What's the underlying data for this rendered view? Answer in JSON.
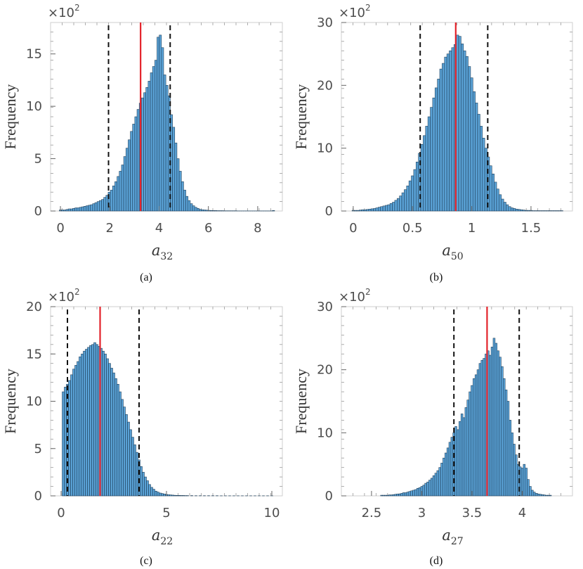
{
  "chart_data": [
    {
      "type": "bar",
      "caption": "(a)",
      "ylabel": "Frequency",
      "xlabel": "a",
      "xlabel_sub": "32",
      "multiplier": "×10",
      "multiplier_exp": "2",
      "xlim": [
        -0.4,
        9.0
      ],
      "ylim": [
        0,
        18
      ],
      "xticks": [
        0,
        2,
        4,
        6,
        8
      ],
      "xtick_labels": [
        "0",
        "2",
        "4",
        "6",
        "8"
      ],
      "yticks": [
        0,
        5,
        10,
        15
      ],
      "ytick_labels": [
        "0",
        "5",
        "10",
        "15"
      ],
      "mean_line": 3.25,
      "interval_lines": [
        1.95,
        4.45
      ],
      "bar_width": 0.09,
      "x": [
        0.0,
        0.09,
        0.18,
        0.27,
        0.36,
        0.45,
        0.54,
        0.63,
        0.72,
        0.81,
        0.9,
        0.99,
        1.08,
        1.17,
        1.26,
        1.35,
        1.44,
        1.53,
        1.62,
        1.71,
        1.8,
        1.89,
        1.98,
        2.07,
        2.16,
        2.25,
        2.34,
        2.43,
        2.52,
        2.61,
        2.7,
        2.79,
        2.88,
        2.97,
        3.06,
        3.15,
        3.24,
        3.33,
        3.42,
        3.51,
        3.6,
        3.69,
        3.78,
        3.87,
        3.96,
        4.05,
        4.14,
        4.23,
        4.32,
        4.41,
        4.5,
        4.59,
        4.68,
        4.77,
        4.86,
        4.95,
        5.04,
        5.13,
        5.22,
        5.31,
        5.4,
        5.49,
        5.58,
        5.67,
        5.76,
        5.85,
        5.94,
        6.03,
        6.12,
        6.21,
        6.3,
        6.39,
        6.48,
        6.57,
        6.66,
        6.75,
        6.84,
        6.93,
        7.02,
        7.11,
        7.2,
        7.29,
        7.38,
        7.47,
        7.56,
        7.65,
        7.74,
        7.83,
        7.92,
        8.01,
        8.1,
        8.19,
        8.28,
        8.37,
        8.46,
        8.55,
        8.64
      ],
      "values": [
        0.1,
        0.1,
        0.1,
        0.15,
        0.2,
        0.2,
        0.25,
        0.3,
        0.3,
        0.35,
        0.4,
        0.45,
        0.5,
        0.55,
        0.6,
        0.7,
        0.8,
        0.9,
        1.0,
        1.1,
        1.3,
        1.5,
        1.8,
        2.0,
        2.4,
        2.8,
        3.3,
        3.8,
        4.4,
        5.2,
        6.0,
        6.8,
        7.6,
        8.3,
        9.0,
        9.7,
        10.3,
        10.8,
        11.3,
        11.8,
        12.4,
        13.2,
        13.8,
        14.4,
        16.6,
        16.8,
        15.6,
        13.0,
        12.0,
        11.0,
        9.2,
        8.0,
        6.5,
        5.0,
        3.8,
        2.8,
        2.0,
        1.4,
        1.0,
        0.7,
        0.5,
        0.35,
        0.25,
        0.15,
        0.12,
        0.1,
        0.08,
        0.06,
        0.05,
        0.04,
        0.04,
        0.03,
        0.03,
        0.03,
        0.02,
        0.02,
        0.02,
        0.02,
        0.02,
        0.02,
        0.01,
        0.01,
        0.01,
        0.01,
        0.01,
        0.01,
        0.01,
        0.01,
        0.01,
        0.01,
        0.01,
        0.01,
        0.01,
        0.01,
        0.01,
        0.01,
        0.05
      ]
    },
    {
      "type": "bar",
      "caption": "(b)",
      "ylabel": "Frequency",
      "xlabel": "a",
      "xlabel_sub": "50",
      "multiplier": "×10",
      "multiplier_exp": "2",
      "xlim": [
        -0.1,
        1.85
      ],
      "ylim": [
        0,
        30
      ],
      "xticks": [
        0,
        0.5,
        1,
        1.5
      ],
      "xtick_labels": [
        "0",
        "0.5",
        "1",
        "1.5"
      ],
      "yticks": [
        0,
        10,
        20,
        30
      ],
      "ytick_labels": [
        "0",
        "10",
        "20",
        "30"
      ],
      "mean_line": 0.865,
      "interval_lines": [
        0.565,
        1.135
      ],
      "bar_width": 0.02,
      "x": [
        0.0,
        0.02,
        0.04,
        0.06,
        0.08,
        0.1,
        0.12,
        0.14,
        0.16,
        0.18,
        0.2,
        0.22,
        0.24,
        0.26,
        0.28,
        0.3,
        0.32,
        0.34,
        0.36,
        0.38,
        0.4,
        0.42,
        0.44,
        0.46,
        0.48,
        0.5,
        0.52,
        0.54,
        0.56,
        0.58,
        0.6,
        0.62,
        0.64,
        0.66,
        0.68,
        0.7,
        0.72,
        0.74,
        0.76,
        0.78,
        0.8,
        0.82,
        0.84,
        0.86,
        0.88,
        0.9,
        0.92,
        0.94,
        0.96,
        0.98,
        1.0,
        1.02,
        1.04,
        1.06,
        1.08,
        1.1,
        1.12,
        1.14,
        1.16,
        1.18,
        1.2,
        1.22,
        1.24,
        1.26,
        1.28,
        1.3,
        1.32,
        1.34,
        1.36,
        1.38,
        1.4,
        1.42,
        1.44,
        1.46,
        1.48,
        1.5,
        1.52,
        1.54,
        1.56,
        1.58,
        1.6,
        1.62,
        1.64,
        1.66,
        1.68,
        1.7,
        1.72,
        1.74,
        1.76
      ],
      "values": [
        0.1,
        0.1,
        0.1,
        0.15,
        0.2,
        0.2,
        0.25,
        0.3,
        0.35,
        0.4,
        0.5,
        0.6,
        0.7,
        0.8,
        0.9,
        1.0,
        1.2,
        1.4,
        1.7,
        2.0,
        2.4,
        2.9,
        3.4,
        4.0,
        4.8,
        5.6,
        6.6,
        7.8,
        9.2,
        10.6,
        12.0,
        13.5,
        15.0,
        16.5,
        18.0,
        19.6,
        21.0,
        22.6,
        23.5,
        24.5,
        25.0,
        25.5,
        26.0,
        26.5,
        28.0,
        27.8,
        26.6,
        25.5,
        24.6,
        23.0,
        21.2,
        19.0,
        17.2,
        15.4,
        13.5,
        11.6,
        10.0,
        8.6,
        7.2,
        5.9,
        4.6,
        3.5,
        2.6,
        1.9,
        1.4,
        1.0,
        0.7,
        0.5,
        0.4,
        0.3,
        0.25,
        0.2,
        0.15,
        0.1,
        0.1,
        0.1,
        0.05,
        0.05,
        0.05,
        0.05,
        0.05,
        0.05,
        0.05,
        0.05,
        0.05,
        0.05,
        0.05,
        0.05,
        0.05
      ]
    },
    {
      "type": "bar",
      "caption": "(c)",
      "ylabel": "Frequency",
      "xlabel": "a",
      "xlabel_sub": "22",
      "multiplier": "×10",
      "multiplier_exp": "2",
      "xlim": [
        -0.5,
        10.5
      ],
      "ylim": [
        0,
        20
      ],
      "xticks": [
        0,
        5,
        10
      ],
      "xtick_labels": [
        "0",
        "5",
        "10"
      ],
      "yticks": [
        0,
        5,
        10,
        15,
        20
      ],
      "ytick_labels": [
        "0",
        "5",
        "10",
        "15",
        "20"
      ],
      "mean_line": 1.85,
      "interval_lines": [
        0.3,
        3.7
      ],
      "bar_width": 0.1,
      "x": [
        0.1,
        0.2,
        0.3,
        0.4,
        0.5,
        0.6,
        0.7,
        0.8,
        0.9,
        1.0,
        1.1,
        1.2,
        1.3,
        1.4,
        1.5,
        1.6,
        1.7,
        1.8,
        1.9,
        2.0,
        2.1,
        2.2,
        2.3,
        2.4,
        2.5,
        2.6,
        2.7,
        2.8,
        2.9,
        3.0,
        3.1,
        3.2,
        3.3,
        3.4,
        3.5,
        3.6,
        3.7,
        3.8,
        3.9,
        4.0,
        4.1,
        4.2,
        4.3,
        4.4,
        4.5,
        4.6,
        4.7,
        4.8,
        4.9,
        5.0,
        5.1,
        5.2,
        5.3,
        5.4,
        5.5,
        5.6,
        5.7,
        5.8,
        5.9,
        6.0,
        6.2,
        6.4,
        6.6,
        6.8,
        7.0,
        7.2,
        7.4,
        7.6,
        7.8,
        8.0,
        8.2,
        8.4,
        8.6,
        8.8,
        9.0,
        9.2,
        9.4,
        9.6,
        9.8,
        10.0
      ],
      "values": [
        11.0,
        11.5,
        11.8,
        12.2,
        12.8,
        13.4,
        13.8,
        14.2,
        14.7,
        15.0,
        15.3,
        15.5,
        15.7,
        15.9,
        16.0,
        16.2,
        16.0,
        15.8,
        15.6,
        15.3,
        15.0,
        14.5,
        14.0,
        13.5,
        13.0,
        12.4,
        11.8,
        11.0,
        10.2,
        9.4,
        8.6,
        7.8,
        7.0,
        6.2,
        5.4,
        4.6,
        3.8,
        3.1,
        2.5,
        2.0,
        1.6,
        1.2,
        0.9,
        0.7,
        0.5,
        0.4,
        0.3,
        0.25,
        0.2,
        0.15,
        0.12,
        0.1,
        0.08,
        0.06,
        0.05,
        0.05,
        0.04,
        0.04,
        0.03,
        0.03,
        0.03,
        0.02,
        0.02,
        0.02,
        0.02,
        0.02,
        0.02,
        0.01,
        0.01,
        0.01,
        0.01,
        0.01,
        0.01,
        0.01,
        0.01,
        0.01,
        0.01,
        0.01,
        0.01,
        0.01
      ]
    },
    {
      "type": "bar",
      "caption": "(d)",
      "ylabel": "Frequency",
      "xlabel": "a",
      "xlabel_sub": "27",
      "multiplier": "×10",
      "multiplier_exp": "2",
      "xlim": [
        2.2,
        4.5
      ],
      "ylim": [
        0,
        30
      ],
      "xticks": [
        2.5,
        3,
        3.5,
        4
      ],
      "xtick_labels": [
        "2.5",
        "3",
        "3.5",
        "4"
      ],
      "yticks": [
        0,
        10,
        20,
        30
      ],
      "ytick_labels": [
        "0",
        "10",
        "20",
        "30"
      ],
      "mean_line": 3.65,
      "interval_lines": [
        3.32,
        3.97
      ],
      "bar_width": 0.02,
      "x": [
        2.6,
        2.62,
        2.64,
        2.66,
        2.68,
        2.7,
        2.72,
        2.74,
        2.76,
        2.78,
        2.8,
        2.82,
        2.84,
        2.86,
        2.88,
        2.9,
        2.92,
        2.94,
        2.96,
        2.98,
        3.0,
        3.02,
        3.04,
        3.06,
        3.08,
        3.1,
        3.12,
        3.14,
        3.16,
        3.18,
        3.2,
        3.22,
        3.24,
        3.26,
        3.28,
        3.3,
        3.32,
        3.34,
        3.36,
        3.38,
        3.4,
        3.42,
        3.44,
        3.46,
        3.48,
        3.5,
        3.52,
        3.54,
        3.56,
        3.58,
        3.6,
        3.62,
        3.64,
        3.66,
        3.68,
        3.7,
        3.72,
        3.74,
        3.76,
        3.78,
        3.8,
        3.82,
        3.84,
        3.86,
        3.88,
        3.9,
        3.92,
        3.94,
        3.96,
        3.98,
        4.0,
        4.02,
        4.04,
        4.06,
        4.08,
        4.1,
        4.12,
        4.14,
        4.16,
        4.18,
        4.2,
        4.22,
        4.24,
        4.26,
        4.28
      ],
      "values": [
        0.1,
        0.1,
        0.1,
        0.1,
        0.15,
        0.15,
        0.2,
        0.25,
        0.3,
        0.3,
        0.4,
        0.5,
        0.5,
        0.6,
        0.7,
        0.8,
        0.9,
        1.0,
        1.2,
        1.3,
        1.5,
        1.7,
        2.0,
        2.2,
        2.5,
        2.8,
        3.2,
        3.6,
        4.0,
        4.5,
        5.2,
        6.0,
        6.8,
        7.6,
        8.5,
        9.3,
        10.0,
        11.0,
        10.5,
        11.8,
        13.0,
        12.4,
        14.0,
        15.2,
        16.5,
        17.5,
        18.6,
        19.2,
        20.0,
        21.0,
        21.5,
        21.8,
        22.5,
        23.0,
        22.3,
        23.6,
        25.0,
        24.2,
        23.0,
        22.0,
        20.5,
        18.6,
        16.8,
        15.0,
        12.0,
        10.0,
        8.2,
        6.5,
        5.0,
        4.6,
        4.4,
        5.0,
        4.4,
        2.6,
        1.5,
        0.9,
        0.6,
        0.4,
        0.3,
        0.25,
        0.2,
        0.15,
        0.1,
        0.1,
        0.1
      ]
    }
  ]
}
